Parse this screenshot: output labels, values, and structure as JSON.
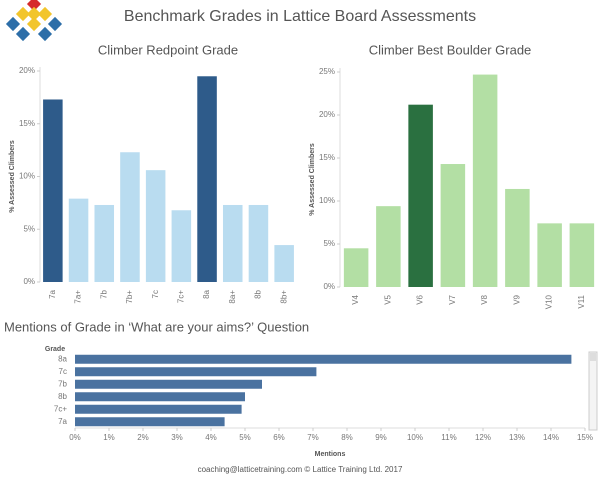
{
  "title": "Benchmark Grades in Lattice Board Assessments",
  "footer": "coaching@latticetraining.com © Lattice Training Ltd. 2017",
  "chart_data": [
    {
      "type": "bar",
      "title": "Climber Redpoint Grade",
      "y_label": "% Assessed Climbers",
      "categories": [
        "7a",
        "7a+",
        "7b",
        "7b+",
        "7c",
        "7c+",
        "8a",
        "8a+",
        "8b",
        "8b+"
      ],
      "values": [
        17.3,
        7.9,
        7.3,
        12.3,
        10.6,
        6.8,
        19.5,
        7.3,
        7.3,
        3.5
      ],
      "colors": [
        "#2e5b8a",
        "#b9dcf0",
        "#b9dcf0",
        "#b9dcf0",
        "#b9dcf0",
        "#b9dcf0",
        "#2e5b8a",
        "#b9dcf0",
        "#b9dcf0",
        "#b9dcf0"
      ],
      "ylim": [
        0,
        20
      ],
      "yticks": [
        {
          "value": 0,
          "label": "0%"
        },
        {
          "value": 5,
          "label": "5%"
        },
        {
          "value": 10,
          "label": "10%"
        },
        {
          "value": 15,
          "label": "15%"
        },
        {
          "value": 20,
          "label": "20%"
        }
      ]
    },
    {
      "type": "bar",
      "title": "Climber Best Boulder Grade",
      "y_label": "% Assessed Climbers",
      "categories": [
        "V4",
        "V5",
        "V6",
        "V7",
        "V8",
        "V9",
        "V10",
        "V11"
      ],
      "values": [
        4.5,
        9.4,
        21.2,
        14.3,
        24.7,
        11.4,
        7.4,
        7.4
      ],
      "colors": [
        "#b3dfa4",
        "#b3dfa4",
        "#2a7040",
        "#b3dfa4",
        "#b3dfa4",
        "#b3dfa4",
        "#b3dfa4",
        "#b3dfa4"
      ],
      "ylim": [
        0,
        25
      ],
      "yticks": [
        {
          "value": 0,
          "label": "0%"
        },
        {
          "value": 5,
          "label": "5%"
        },
        {
          "value": 10,
          "label": "10%"
        },
        {
          "value": 15,
          "label": "15%"
        },
        {
          "value": 20,
          "label": "20%"
        },
        {
          "value": 25,
          "label": "25%"
        }
      ]
    },
    {
      "type": "barh",
      "title": "Mentions of Grade in ‘What are your aims?’ Question",
      "y_label": "Grade",
      "x_label": "Mentions",
      "categories": [
        "8a",
        "7c",
        "7b",
        "8b",
        "7c+",
        "7a"
      ],
      "values": [
        14.6,
        7.1,
        5.5,
        5.0,
        4.9,
        4.4
      ],
      "color": "#4a72a0",
      "xlim": [
        0,
        15
      ],
      "xticks": [
        {
          "value": 0,
          "label": "0%"
        },
        {
          "value": 1,
          "label": "1%"
        },
        {
          "value": 2,
          "label": "2%"
        },
        {
          "value": 3,
          "label": "3%"
        },
        {
          "value": 4,
          "label": "4%"
        },
        {
          "value": 5,
          "label": "5%"
        },
        {
          "value": 6,
          "label": "6%"
        },
        {
          "value": 7,
          "label": "7%"
        },
        {
          "value": 8,
          "label": "8%"
        },
        {
          "value": 9,
          "label": "9%"
        },
        {
          "value": 10,
          "label": "10%"
        },
        {
          "value": 11,
          "label": "11%"
        },
        {
          "value": 12,
          "label": "12%"
        },
        {
          "value": 13,
          "label": "13%"
        },
        {
          "value": 14,
          "label": "14%"
        },
        {
          "value": 15,
          "label": "15%"
        }
      ]
    }
  ]
}
